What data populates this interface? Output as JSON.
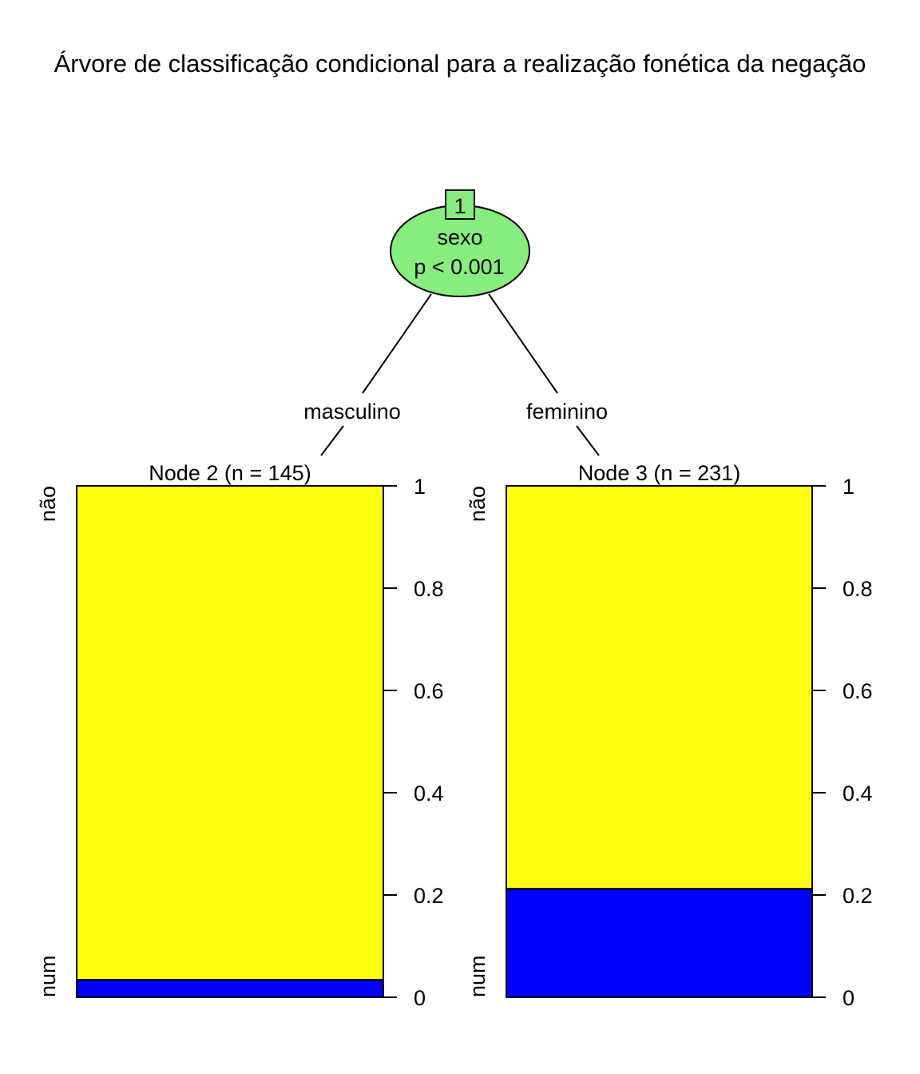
{
  "chart_data": {
    "type": "bar",
    "title": "Árvore de classificação condicional para a realização fonética da negação",
    "split_node": {
      "id": "1",
      "variable": "sexo",
      "pvalue": "p < 0.001",
      "fill_color": "#87ED7F"
    },
    "branches": [
      "masculino",
      "feminino"
    ],
    "y_ticks": [
      "0",
      "0.2",
      "0.4",
      "0.6",
      "0.8",
      "1"
    ],
    "ylim": [
      0,
      1
    ],
    "categories": [
      "num",
      "não"
    ],
    "category_colors": {
      "num": "#0000FF",
      "não": "#FFFF0D"
    },
    "nodes": [
      {
        "label": "Node 2 (n = 145)",
        "n": 145,
        "num": 0.034,
        "nao": 0.966
      },
      {
        "label": "Node 3 (n = 231)",
        "n": 231,
        "num": 0.212,
        "nao": 0.788
      }
    ]
  }
}
